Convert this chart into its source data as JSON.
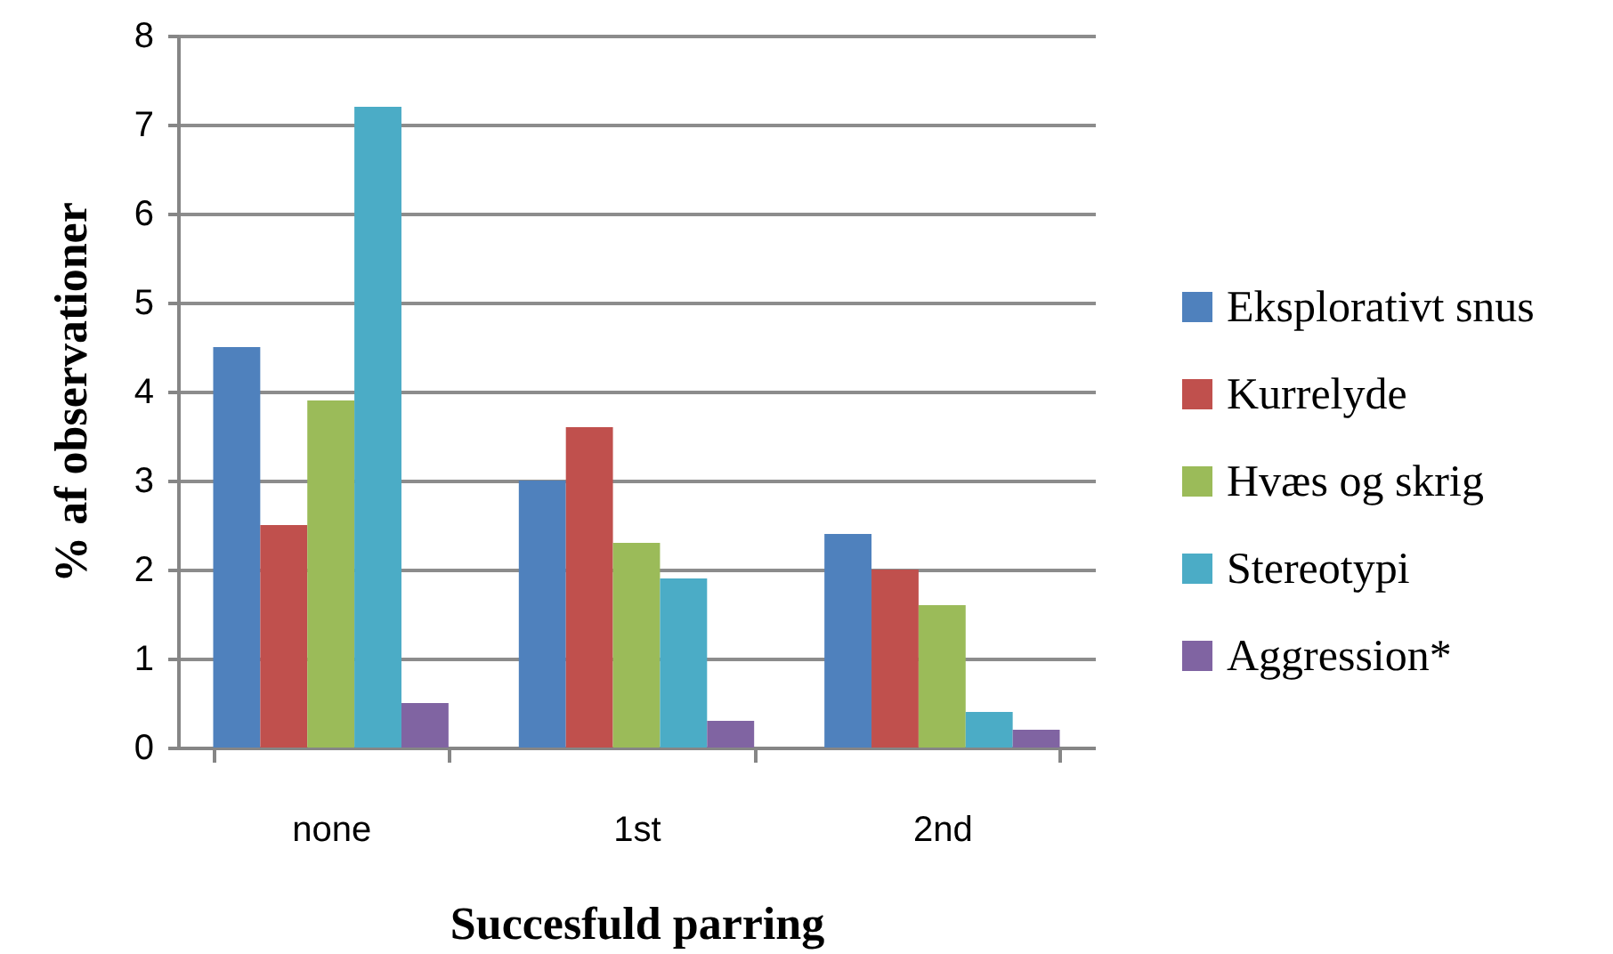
{
  "chart_data": {
    "type": "bar",
    "xlabel": "Succesfuld parring",
    "ylabel": "% af observationer",
    "categories": [
      "none",
      "1st",
      "2nd"
    ],
    "series": [
      {
        "name": "Eksplorativt snus",
        "color": "#4f81bd",
        "values": [
          4.5,
          3.0,
          2.4
        ]
      },
      {
        "name": "Kurrelyde",
        "color": "#c0504d",
        "values": [
          2.5,
          3.6,
          2.0
        ]
      },
      {
        "name": "Hvæs og skrig",
        "color": "#9bbb59",
        "values": [
          3.9,
          2.3,
          1.6
        ]
      },
      {
        "name": "Stereotypi",
        "color": "#4bacc6",
        "values": [
          7.2,
          1.9,
          0.4
        ]
      },
      {
        "name": "Aggression*",
        "color": "#8064a2",
        "values": [
          0.5,
          0.3,
          0.2
        ]
      }
    ],
    "ylim": [
      0,
      8
    ],
    "yticks": [
      0,
      1,
      2,
      3,
      4,
      5,
      6,
      7,
      8
    ],
    "grid": "y",
    "legend": "right"
  }
}
